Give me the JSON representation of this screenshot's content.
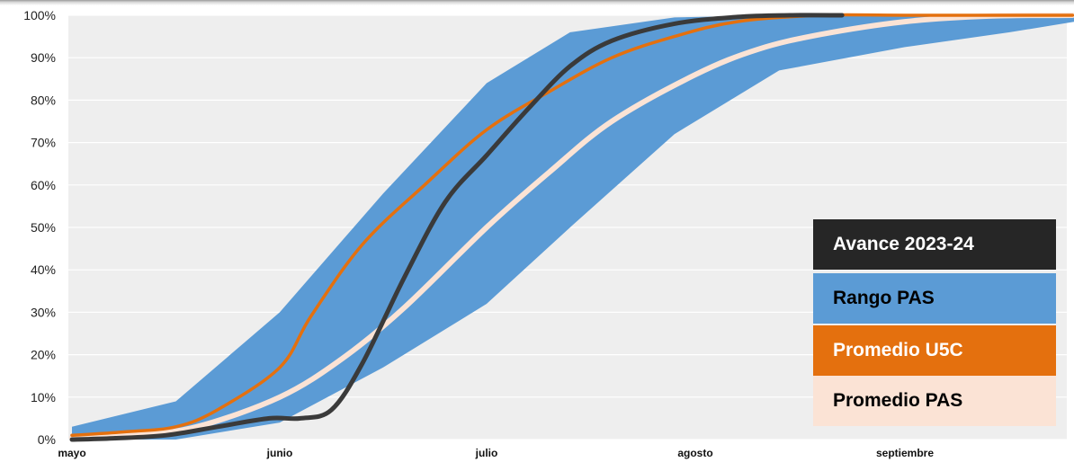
{
  "chart_data": {
    "type": "area",
    "x_ticks": [
      "mayo",
      "junio",
      "julio",
      "agosto",
      "septiembre"
    ],
    "y_ticks": [
      "0%",
      "10%",
      "20%",
      "30%",
      "40%",
      "50%",
      "60%",
      "70%",
      "80%",
      "90%",
      "100%"
    ],
    "ylim": [
      0,
      100
    ],
    "grid": true,
    "legend_position": "bottom-right",
    "x_unit": "months since May 1",
    "band": {
      "name": "Rango PAS",
      "color": "#5b9bd5",
      "x": [
        0,
        0.5,
        1.0,
        1.5,
        2.0,
        2.4,
        2.9,
        3.4,
        4.0,
        4.5,
        5.0
      ],
      "upper": [
        3,
        9,
        30,
        58,
        84,
        96,
        99.5,
        100,
        100,
        100,
        100
      ],
      "lower": [
        0,
        0,
        4,
        17,
        32,
        50,
        72,
        87,
        92.5,
        96,
        100
      ]
    },
    "series": [
      {
        "name": "Promedio PAS",
        "color": "#fbe3d5",
        "x": [
          0,
          0.3,
          0.6,
          1.0,
          1.3,
          1.6,
          2.0,
          2.3,
          2.6,
          3.0,
          3.3,
          3.6,
          4.0,
          4.4,
          4.8
        ],
        "y": [
          0.5,
          1,
          3,
          10,
          19,
          31,
          50,
          63,
          75,
          86,
          92,
          95.5,
          98.5,
          99.8,
          100
        ]
      },
      {
        "name": "Promedio U5C",
        "color": "#e4700e",
        "x": [
          0,
          0.25,
          0.5,
          0.7,
          1.0,
          1.15,
          1.4,
          1.7,
          2.0,
          2.3,
          2.6,
          2.9,
          3.2,
          3.6,
          4.0,
          4.8
        ],
        "y": [
          1,
          1.8,
          3,
          7,
          17,
          29,
          46,
          60,
          73,
          82,
          90,
          95,
          98.5,
          100,
          100,
          100
        ]
      },
      {
        "name": "Avance 2023-24",
        "color": "#3a3a3a",
        "x": [
          0,
          0.2,
          0.45,
          0.7,
          0.95,
          1.1,
          1.25,
          1.4,
          1.6,
          1.8,
          2.0,
          2.2,
          2.4,
          2.6,
          2.9,
          3.2,
          3.45,
          3.7
        ],
        "y": [
          0,
          0.3,
          1,
          3,
          5,
          5,
          7,
          18,
          38,
          56,
          67,
          78,
          88,
          94,
          98,
          99.6,
          100,
          100
        ]
      }
    ]
  },
  "legend": [
    {
      "label": "Avance 2023-24",
      "bg": "#262626",
      "fg": "#ffffff"
    },
    {
      "label": "Rango PAS",
      "bg": "#5b9bd5",
      "fg": "#000000"
    },
    {
      "label": "Promedio U5C",
      "bg": "#e4700e",
      "fg": "#ffffff"
    },
    {
      "label": "Promedio PAS",
      "bg": "#fbe3d5",
      "fg": "#000000"
    }
  ]
}
